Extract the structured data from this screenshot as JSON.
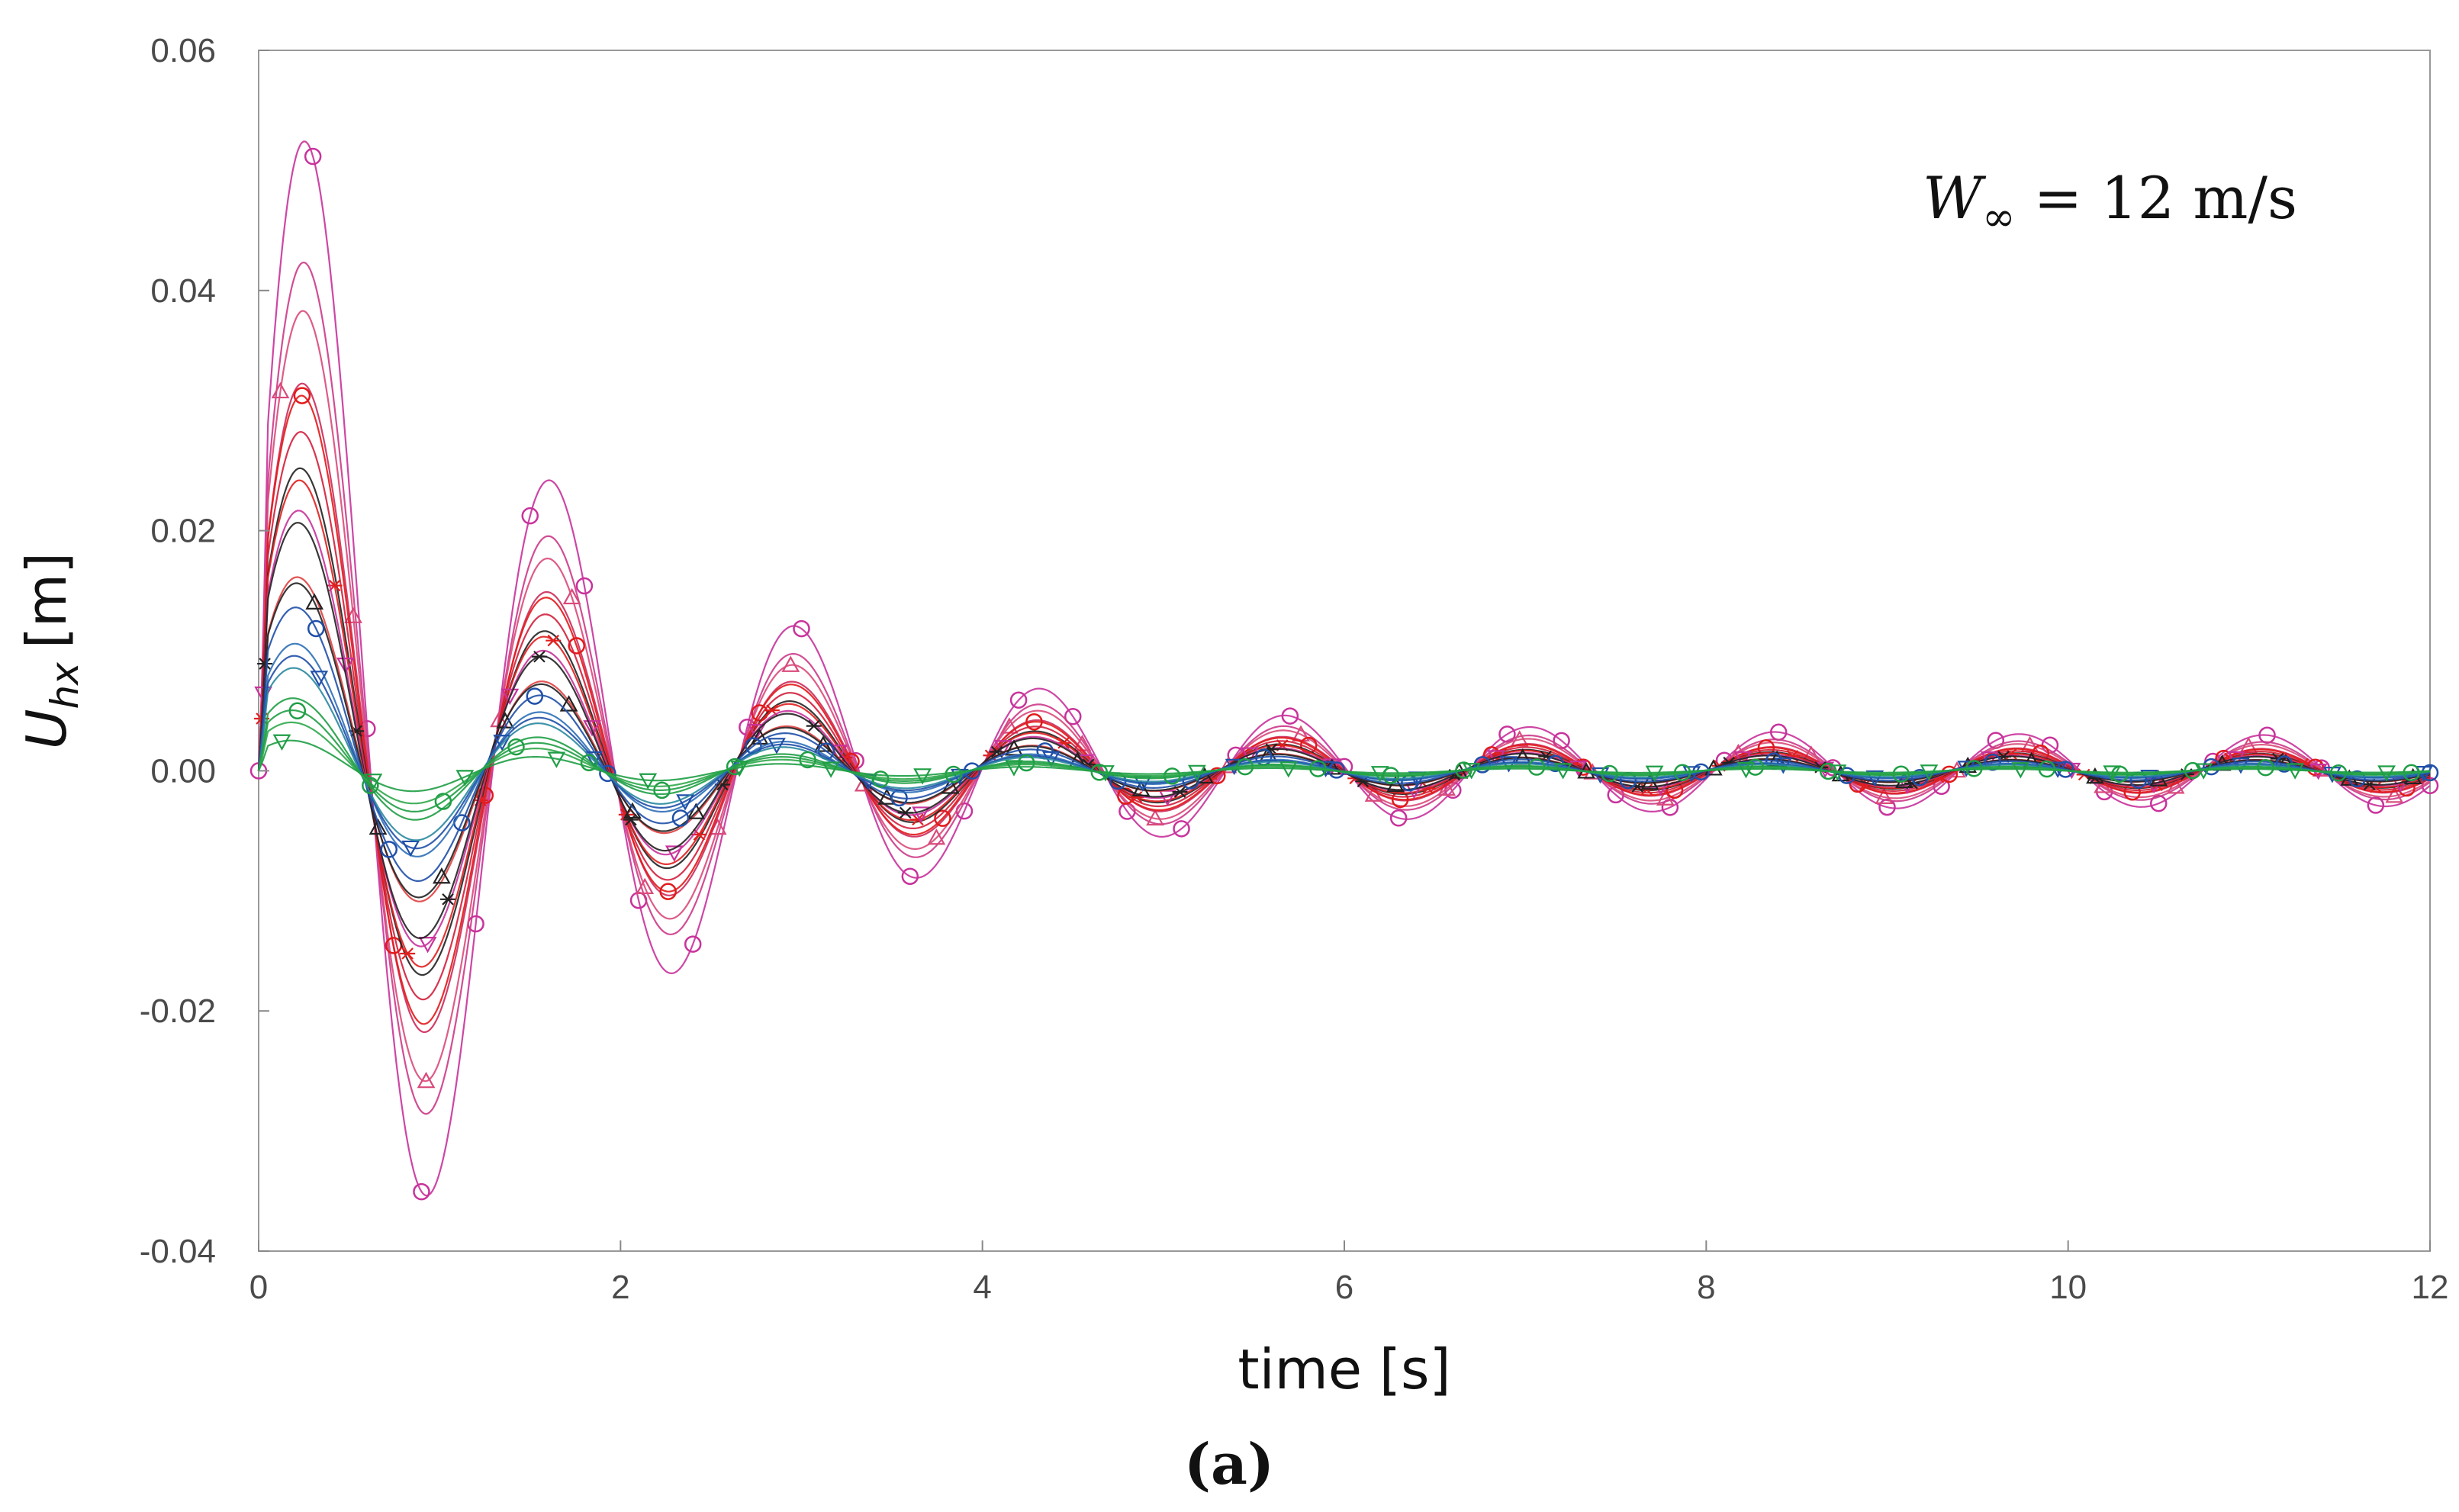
{
  "chart_data": {
    "type": "line",
    "title": "",
    "xlabel": "time [s]",
    "ylabel": {
      "base": "U",
      "sub": "hx",
      "unit": "[m]"
    },
    "xlim": [
      0,
      12
    ],
    "ylim": [
      -0.04,
      0.06
    ],
    "xticks": [
      0,
      2,
      4,
      6,
      8,
      10,
      12
    ],
    "xtick_labels": [
      "0",
      "2",
      "4",
      "6",
      "8",
      "10",
      "12"
    ],
    "yticks": [
      -0.04,
      -0.02,
      0.0,
      0.02,
      0.04,
      0.06
    ],
    "ytick_labels": [
      "-0.04",
      "-0.02",
      "0.00",
      "0.02",
      "0.04",
      "0.06"
    ],
    "grid": false,
    "annotation": {
      "symbol": "W",
      "sub": "∞",
      "rest": " = 12 m/s"
    },
    "panel_label": "(a)",
    "oscillation": {
      "period": 1.35,
      "decay_time": 1.6,
      "first_peak_time": 0.28,
      "residual_amplitude_fraction": 0.05
    },
    "series": [
      {
        "color": "#c8329b",
        "marker": "circle",
        "first_peak": 0.052
      },
      {
        "color": "#cc3a88",
        "marker": "none",
        "first_peak": 0.042
      },
      {
        "color": "#d94a7a",
        "marker": "triangle",
        "first_peak": 0.038
      },
      {
        "color": "#cc2a5a",
        "marker": "none",
        "first_peak": 0.032
      },
      {
        "color": "#e21a1a",
        "marker": "circle",
        "first_peak": 0.031
      },
      {
        "color": "#d11f3c",
        "marker": "none",
        "first_peak": 0.028
      },
      {
        "color": "#222222",
        "marker": "none",
        "first_peak": 0.025
      },
      {
        "color": "#e01f1f",
        "marker": "star",
        "first_peak": 0.024
      },
      {
        "color": "#c8329b",
        "marker": "triangle-down",
        "first_peak": 0.0215
      },
      {
        "color": "#222222",
        "marker": "star",
        "first_peak": 0.0205
      },
      {
        "color": "#e04040",
        "marker": "none",
        "first_peak": 0.016
      },
      {
        "color": "#222222",
        "marker": "triangle",
        "first_peak": 0.0155
      },
      {
        "color": "#1f4fa8",
        "marker": "circle",
        "first_peak": 0.0135
      },
      {
        "color": "#2d6fb8",
        "marker": "none",
        "first_peak": 0.0105
      },
      {
        "color": "#1f4fa8",
        "marker": "triangle-down",
        "first_peak": 0.0095
      },
      {
        "color": "#2a88a0",
        "marker": "none",
        "first_peak": 0.0085
      },
      {
        "color": "#1f9e45",
        "marker": "none",
        "first_peak": 0.006
      },
      {
        "color": "#1f9e45",
        "marker": "circle",
        "first_peak": 0.005
      },
      {
        "color": "#30a84a",
        "marker": "none",
        "first_peak": 0.004
      },
      {
        "color": "#1f9e45",
        "marker": "triangle-down",
        "first_peak": 0.0025
      }
    ]
  }
}
